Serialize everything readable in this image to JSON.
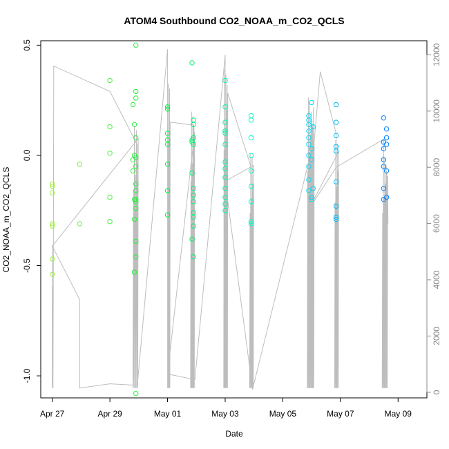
{
  "chart_data": {
    "type": "scatter",
    "title": "ATOM4 Southbound CO2_NOAA_m_CO2_QCLS",
    "xlabel": "Date",
    "ylabel": "CO2_NOAA_m_CO2_QCLS",
    "x_ticks": [
      "Apr 27",
      "Apr 29",
      "May 01",
      "May 03",
      "May 05",
      "May 07",
      "May 09"
    ],
    "x_tick_days": [
      0,
      2,
      4,
      6,
      8,
      10,
      12
    ],
    "x_range_days": [
      -0.4,
      13.0
    ],
    "y_ticks": [
      "-1.0",
      "-0.5",
      "0.0",
      "0.5"
    ],
    "y_tick_values": [
      -1.0,
      -0.5,
      0.0,
      0.5
    ],
    "y_range": [
      -1.1,
      0.52
    ],
    "y2_ticks": [
      "0",
      "2000",
      "4000",
      "6000",
      "8000",
      "10000",
      "12000"
    ],
    "y2_tick_values": [
      0,
      2000,
      4000,
      6000,
      8000,
      10000,
      12000
    ],
    "y2_range": [
      -200,
      12500
    ],
    "y2_axis_meaning": "altitude trace (grey line)",
    "point_color_scale": [
      "#a0ee40",
      "#00ee40",
      "#00ffee",
      "#0080ff"
    ],
    "scatter_points": [
      [
        0.0,
        -0.13
      ],
      [
        0.0,
        -0.14
      ],
      [
        0.0,
        -0.17
      ],
      [
        0.0,
        -0.31
      ],
      [
        0.0,
        -0.32
      ],
      [
        0.0,
        -0.47
      ],
      [
        0.0,
        -0.54
      ],
      [
        0.95,
        -0.04
      ],
      [
        0.95,
        -0.31
      ],
      [
        2.0,
        0.34
      ],
      [
        2.0,
        0.13
      ],
      [
        2.0,
        0.01
      ],
      [
        2.0,
        -0.19
      ],
      [
        2.0,
        -0.3
      ],
      [
        2.8,
        0.23
      ],
      [
        2.8,
        -0.02
      ],
      [
        2.8,
        -0.07
      ],
      [
        2.85,
        0.14
      ],
      [
        2.85,
        0.0
      ],
      [
        2.85,
        -0.2
      ],
      [
        2.85,
        -0.29
      ],
      [
        2.85,
        -0.53
      ],
      [
        2.9,
        0.5
      ],
      [
        2.9,
        0.29
      ],
      [
        2.9,
        0.26
      ],
      [
        2.9,
        0.08
      ],
      [
        2.9,
        -0.01
      ],
      [
        2.9,
        -0.05
      ],
      [
        2.9,
        -0.13
      ],
      [
        2.9,
        -0.16
      ],
      [
        2.9,
        -0.2
      ],
      [
        2.9,
        -0.21
      ],
      [
        2.9,
        -0.24
      ],
      [
        2.9,
        -0.39
      ],
      [
        2.9,
        -0.46
      ],
      [
        2.9,
        -1.08
      ],
      [
        4.0,
        0.21
      ],
      [
        4.0,
        0.22
      ],
      [
        4.0,
        0.1
      ],
      [
        4.0,
        0.07
      ],
      [
        4.0,
        0.05
      ],
      [
        4.0,
        -0.04
      ],
      [
        4.0,
        -0.16
      ],
      [
        4.0,
        -0.27
      ],
      [
        4.85,
        0.42
      ],
      [
        4.85,
        0.07
      ],
      [
        4.85,
        0.06
      ],
      [
        4.85,
        -0.08
      ],
      [
        4.85,
        -0.38
      ],
      [
        4.9,
        0.16
      ],
      [
        4.9,
        0.14
      ],
      [
        4.9,
        0.08
      ],
      [
        4.9,
        0.05
      ],
      [
        4.9,
        -0.15
      ],
      [
        4.9,
        -0.18
      ],
      [
        4.9,
        -0.21
      ],
      [
        4.9,
        -0.26
      ],
      [
        4.9,
        -0.28
      ],
      [
        4.9,
        -0.32
      ],
      [
        4.9,
        -0.46
      ],
      [
        6.0,
        0.34
      ],
      [
        6.0,
        0.22
      ],
      [
        6.0,
        0.15
      ],
      [
        6.0,
        0.11
      ],
      [
        6.0,
        0.1
      ],
      [
        6.0,
        0.05
      ],
      [
        6.0,
        -0.03
      ],
      [
        6.0,
        -0.06
      ],
      [
        6.0,
        -0.1
      ],
      [
        6.0,
        -0.15
      ],
      [
        6.0,
        -0.19
      ],
      [
        6.0,
        -0.22
      ],
      [
        6.0,
        -0.25
      ],
      [
        6.9,
        0.18
      ],
      [
        6.9,
        0.16
      ],
      [
        6.9,
        0.08
      ],
      [
        6.9,
        0.0
      ],
      [
        6.9,
        -0.07
      ],
      [
        6.9,
        -0.14
      ],
      [
        6.9,
        -0.21
      ],
      [
        6.9,
        -0.3
      ],
      [
        6.9,
        -0.31
      ],
      [
        8.9,
        0.18
      ],
      [
        8.9,
        0.16
      ],
      [
        8.9,
        0.14
      ],
      [
        8.9,
        0.11
      ],
      [
        8.9,
        0.08
      ],
      [
        8.9,
        0.05
      ],
      [
        8.9,
        0.0
      ],
      [
        8.9,
        -0.05
      ],
      [
        8.9,
        -0.11
      ],
      [
        8.9,
        -0.16
      ],
      [
        9.0,
        0.24
      ],
      [
        9.0,
        0.03
      ],
      [
        9.0,
        -0.02
      ],
      [
        9.0,
        -0.19
      ],
      [
        9.0,
        -0.2
      ],
      [
        9.05,
        -0.15
      ],
      [
        9.05,
        0.13
      ],
      [
        9.85,
        0.23
      ],
      [
        9.85,
        0.15
      ],
      [
        9.85,
        0.09
      ],
      [
        9.85,
        0.04
      ],
      [
        9.85,
        0.02
      ],
      [
        9.85,
        -0.12
      ],
      [
        9.85,
        -0.23
      ],
      [
        9.85,
        -0.28
      ],
      [
        9.85,
        -0.29
      ],
      [
        11.5,
        0.17
      ],
      [
        11.5,
        0.06
      ],
      [
        11.5,
        0.03
      ],
      [
        11.5,
        -0.02
      ],
      [
        11.5,
        -0.05
      ],
      [
        11.5,
        -0.15
      ],
      [
        11.5,
        -0.2
      ],
      [
        11.6,
        0.12
      ],
      [
        11.6,
        0.08
      ],
      [
        11.6,
        0.05
      ],
      [
        11.6,
        -0.07
      ],
      [
        11.6,
        -0.19
      ]
    ]
  }
}
